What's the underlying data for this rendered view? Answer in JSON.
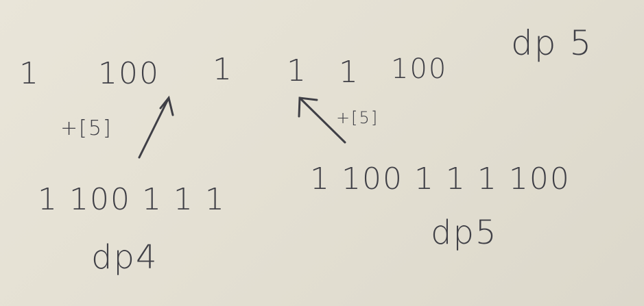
{
  "whiteboard": {
    "top_row": {
      "n1": "1",
      "n2": "100",
      "n3": "1",
      "n4": "1",
      "n5": "1",
      "n6": "100",
      "label": "dp 5"
    },
    "annotations": {
      "left_plus": "+[5]",
      "right_plus": "+[5]"
    },
    "bottom_left": {
      "sequence": "1 100 1 1 1",
      "label": "dp4"
    },
    "bottom_right": {
      "sequence": "1 100 1 1 1 100",
      "label": "dp5"
    }
  },
  "colors": {
    "board": "#e6e2d6",
    "ink": "#3f3f46"
  }
}
